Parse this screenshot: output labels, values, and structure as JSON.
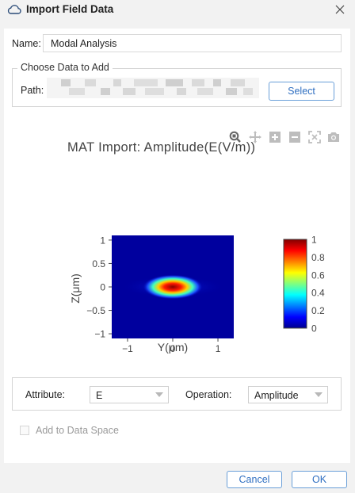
{
  "window": {
    "title": "Import Field Data",
    "app_icon": "cloud-icon",
    "close_icon": "close-icon"
  },
  "name_row": {
    "label": "Name:",
    "value": "Modal Analysis"
  },
  "data_group": {
    "legend": "Choose Data to Add",
    "path_label": "Path:",
    "path_value": "",
    "select_label": "Select"
  },
  "plot_toolbar": [
    "zoom-icon",
    "pan-icon",
    "zoom-in-icon",
    "zoom-out-icon",
    "reset-axes-icon",
    "camera-icon"
  ],
  "chart_data": {
    "type": "heatmap",
    "title": "MAT Import: Amplitude(E(V/m))",
    "xlabel": "Y(μm)",
    "ylabel": "Z(μm)",
    "xlim": [
      -1.35,
      1.35
    ],
    "ylim": [
      -1.1,
      1.1
    ],
    "x_ticks": [
      -1,
      0,
      1
    ],
    "x_tick_labels": [
      "−1",
      "0",
      "1"
    ],
    "y_ticks": [
      1,
      0.5,
      0,
      -0.5,
      -1
    ],
    "y_tick_labels": [
      "1",
      "0.5",
      "0",
      "−0.5",
      "−1"
    ],
    "colorscale": "jet",
    "colorbar": {
      "min": 0,
      "max": 1,
      "ticks": [
        1,
        0.8,
        0.6,
        0.4,
        0.2,
        0
      ],
      "tick_labels": [
        "1",
        "0.8",
        "0.6",
        "0.4",
        "0.2",
        "0"
      ]
    },
    "peak": {
      "y": 0,
      "z": 0,
      "value": 1.0
    },
    "mode_width_y": 0.35,
    "mode_width_z": 0.12
  },
  "attribute": {
    "label": "Attribute:",
    "value": "E"
  },
  "operation": {
    "label": "Operation:",
    "value": "Amplitude"
  },
  "add_to_space": {
    "label": "Add to Data Space",
    "checked": false
  },
  "footer": {
    "cancel_label": "Cancel",
    "ok_label": "OK"
  },
  "colors": {
    "accent": "#2f6fc1",
    "button_border": "#6a9fd8",
    "background": "#f2f2f2"
  }
}
